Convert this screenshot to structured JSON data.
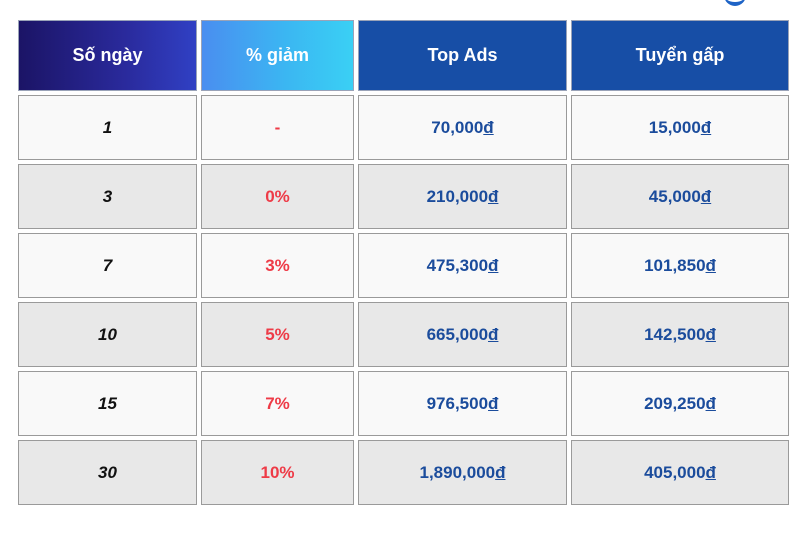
{
  "table": {
    "headers": {
      "days": "Số ngày",
      "discount": "% giảm",
      "top_ads": "Top Ads",
      "urgent": "Tuyển gấp"
    },
    "currency_symbol": "đ",
    "rows": [
      {
        "days": "1",
        "discount": "-",
        "top_ads": "70,000",
        "urgent": "15,000"
      },
      {
        "days": "3",
        "discount": "0%",
        "top_ads": "210,000",
        "urgent": "45,000"
      },
      {
        "days": "7",
        "discount": "3%",
        "top_ads": "475,300",
        "urgent": "101,850"
      },
      {
        "days": "10",
        "discount": "5%",
        "top_ads": "665,000",
        "urgent": "142,500"
      },
      {
        "days": "15",
        "discount": "7%",
        "top_ads": "976,500",
        "urgent": "209,250"
      },
      {
        "days": "30",
        "discount": "10%",
        "top_ads": "1,890,000",
        "urgent": "405,000"
      }
    ]
  },
  "colors": {
    "discount_text": "#ee3b47",
    "price_text": "#1b4c9c",
    "header_blue": "#174ea6"
  }
}
